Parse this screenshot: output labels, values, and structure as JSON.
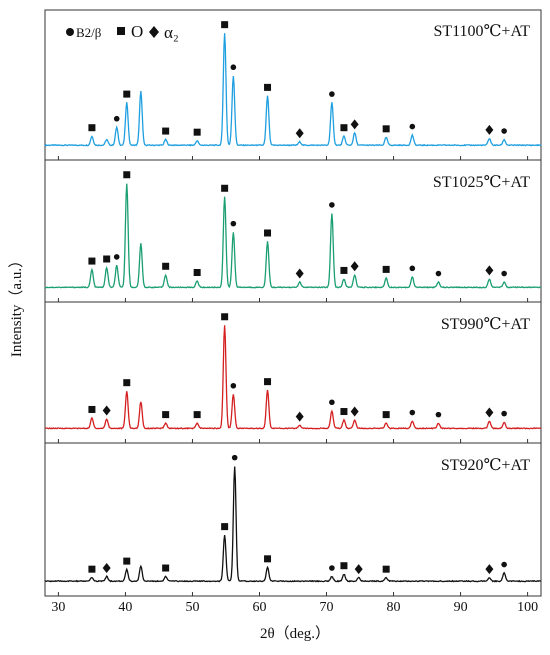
{
  "chart_data": {
    "type": "line",
    "xlabel": "2θ（deg.）",
    "ylabel": "Intensity（a.u.）",
    "xlim": [
      28,
      102
    ],
    "x_ticks": [
      "30",
      "40",
      "50",
      "60",
      "70",
      "80",
      "90",
      "100"
    ],
    "x_tick_values": [
      30,
      40,
      50,
      60,
      70,
      80,
      90,
      100
    ],
    "legend": [
      {
        "marker": "circle",
        "text": "B2/β"
      },
      {
        "marker": "square",
        "text": "O"
      },
      {
        "marker": "diamond",
        "text": "α₂"
      }
    ],
    "panels": [
      {
        "label": "ST1100℃+AT",
        "color": "#1f9fe0",
        "peaks": [
          [
            35.0,
            0.08
          ],
          [
            37.2,
            0.05
          ],
          [
            38.7,
            0.16
          ],
          [
            40.2,
            0.38
          ],
          [
            42.3,
            0.48
          ],
          [
            46.0,
            0.05
          ],
          [
            50.7,
            0.04
          ],
          [
            54.8,
            1.0
          ],
          [
            56.1,
            0.62
          ],
          [
            61.2,
            0.44
          ],
          [
            66.0,
            0.03
          ],
          [
            70.8,
            0.38
          ],
          [
            72.6,
            0.08
          ],
          [
            74.2,
            0.11
          ],
          [
            78.9,
            0.07
          ],
          [
            82.8,
            0.09
          ],
          [
            94.3,
            0.06
          ],
          [
            96.5,
            0.05
          ]
        ],
        "markers": [
          [
            35.0,
            "square"
          ],
          [
            38.7,
            "circle"
          ],
          [
            40.2,
            "square"
          ],
          [
            46.0,
            "square"
          ],
          [
            50.7,
            "square"
          ],
          [
            54.8,
            "square"
          ],
          [
            56.1,
            "circle"
          ],
          [
            61.2,
            "square"
          ],
          [
            66.0,
            "diamond"
          ],
          [
            70.8,
            "circle"
          ],
          [
            72.6,
            "square"
          ],
          [
            74.2,
            "diamond"
          ],
          [
            78.9,
            "square"
          ],
          [
            82.8,
            "circle"
          ],
          [
            94.3,
            "diamond"
          ],
          [
            96.5,
            "circle"
          ]
        ]
      },
      {
        "label": "ST1025℃+AT",
        "color": "#1a9e72",
        "peaks": [
          [
            35.0,
            0.17
          ],
          [
            37.2,
            0.19
          ],
          [
            38.7,
            0.21
          ],
          [
            40.2,
            1.0
          ],
          [
            42.3,
            0.42
          ],
          [
            46.0,
            0.12
          ],
          [
            50.7,
            0.06
          ],
          [
            54.8,
            0.87
          ],
          [
            56.1,
            0.53
          ],
          [
            61.2,
            0.44
          ],
          [
            66.0,
            0.05
          ],
          [
            70.8,
            0.71
          ],
          [
            72.6,
            0.08
          ],
          [
            74.2,
            0.12
          ],
          [
            78.9,
            0.09
          ],
          [
            82.8,
            0.1
          ],
          [
            86.7,
            0.05
          ],
          [
            94.3,
            0.08
          ],
          [
            96.5,
            0.05
          ]
        ],
        "markers": [
          [
            35.0,
            "square"
          ],
          [
            37.2,
            "square"
          ],
          [
            38.7,
            "circle"
          ],
          [
            40.2,
            "square"
          ],
          [
            46.0,
            "square"
          ],
          [
            50.7,
            "square"
          ],
          [
            54.8,
            "square"
          ],
          [
            56.1,
            "circle"
          ],
          [
            61.2,
            "square"
          ],
          [
            66.0,
            "diamond"
          ],
          [
            70.8,
            "circle"
          ],
          [
            72.6,
            "square"
          ],
          [
            74.2,
            "diamond"
          ],
          [
            78.9,
            "square"
          ],
          [
            82.8,
            "circle"
          ],
          [
            86.7,
            "circle"
          ],
          [
            94.3,
            "diamond"
          ],
          [
            96.5,
            "circle"
          ]
        ]
      },
      {
        "label": "ST990℃+AT",
        "color": "#d42020",
        "peaks": [
          [
            35.0,
            0.1
          ],
          [
            37.2,
            0.09
          ],
          [
            40.2,
            0.36
          ],
          [
            42.3,
            0.26
          ],
          [
            46.0,
            0.05
          ],
          [
            50.7,
            0.05
          ],
          [
            54.8,
            1.0
          ],
          [
            56.1,
            0.33
          ],
          [
            61.2,
            0.37
          ],
          [
            66.0,
            0.03
          ],
          [
            70.8,
            0.17
          ],
          [
            72.6,
            0.08
          ],
          [
            74.2,
            0.08
          ],
          [
            78.9,
            0.05
          ],
          [
            82.8,
            0.07
          ],
          [
            86.7,
            0.05
          ],
          [
            94.3,
            0.07
          ],
          [
            96.5,
            0.06
          ]
        ],
        "markers": [
          [
            35.0,
            "square"
          ],
          [
            37.2,
            "diamond"
          ],
          [
            40.2,
            "square"
          ],
          [
            46.0,
            "square"
          ],
          [
            50.7,
            "square"
          ],
          [
            54.8,
            "square"
          ],
          [
            56.1,
            "circle"
          ],
          [
            61.2,
            "square"
          ],
          [
            66.0,
            "diamond"
          ],
          [
            70.8,
            "circle"
          ],
          [
            72.6,
            "square"
          ],
          [
            74.2,
            "diamond"
          ],
          [
            78.9,
            "square"
          ],
          [
            82.8,
            "circle"
          ],
          [
            86.7,
            "circle"
          ],
          [
            94.3,
            "diamond"
          ],
          [
            96.5,
            "circle"
          ]
        ]
      },
      {
        "label": "ST920℃+AT",
        "color": "#111111",
        "peaks": [
          [
            35.0,
            0.03
          ],
          [
            37.2,
            0.04
          ],
          [
            40.2,
            0.1
          ],
          [
            42.3,
            0.13
          ],
          [
            46.0,
            0.04
          ],
          [
            54.8,
            0.4
          ],
          [
            56.3,
            1.0
          ],
          [
            61.2,
            0.12
          ],
          [
            70.8,
            0.04
          ],
          [
            72.6,
            0.06
          ],
          [
            74.8,
            0.03
          ],
          [
            78.9,
            0.03
          ],
          [
            94.3,
            0.03
          ],
          [
            96.5,
            0.07
          ]
        ],
        "markers": [
          [
            35.0,
            "square"
          ],
          [
            37.2,
            "diamond"
          ],
          [
            40.2,
            "square"
          ],
          [
            46.0,
            "square"
          ],
          [
            54.8,
            "square"
          ],
          [
            56.3,
            "circle"
          ],
          [
            61.2,
            "square"
          ],
          [
            70.8,
            "circle"
          ],
          [
            72.6,
            "square"
          ],
          [
            74.8,
            "diamond"
          ],
          [
            78.9,
            "square"
          ],
          [
            94.3,
            "diamond"
          ],
          [
            96.5,
            "circle"
          ]
        ]
      }
    ]
  }
}
